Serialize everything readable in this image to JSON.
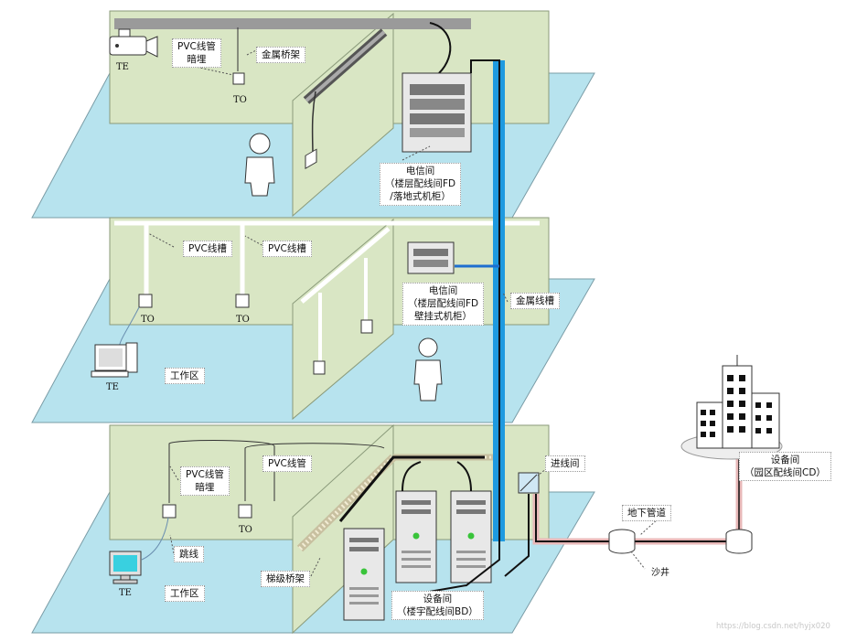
{
  "floor3": {
    "te": "TE",
    "pvc_conduit_concealed": [
      "PVC线管",
      "暗埋"
    ],
    "metal_tray": "金属桥架",
    "to": "TO",
    "telecom_room": [
      "电信间",
      "（楼层配线间FD",
      "/落地式机柜）"
    ]
  },
  "floor2": {
    "pvc_trough_1": "PVC线槽",
    "pvc_trough_2": "PVC线槽",
    "to_1": "TO",
    "to_2": "TO",
    "telecom_room": [
      "电信间",
      "（楼层配线间FD",
      "壁挂式机柜）"
    ],
    "metal_trough": "金属线槽",
    "te": "TE",
    "work_area": "工作区"
  },
  "floor1": {
    "pvc_conduit_concealed": [
      "PVC线管",
      "暗埋"
    ],
    "pvc_conduit": "PVC线管",
    "entrance_room": "进线间",
    "to": "TO",
    "patch_cord": "跳线",
    "ladder_tray": "梯级桥架",
    "te": "TE",
    "work_area": "工作区",
    "equipment_room": [
      "设备间",
      "（楼宇配线间BD）"
    ]
  },
  "campus": {
    "equipment_room": [
      "设备间",
      "（园区配线间CD）"
    ],
    "underground_duct": "地下管道",
    "manhole": "沙井"
  },
  "watermark": "https://blog.csdn.net/hyjx020",
  "colors": {
    "wall": "#d9e6c4",
    "floor": "#b7e3ee",
    "metal_trough": "#1e9ae0",
    "cable": "#111111",
    "underground_duct": "#e8b8b8",
    "led": "#39c43a"
  }
}
